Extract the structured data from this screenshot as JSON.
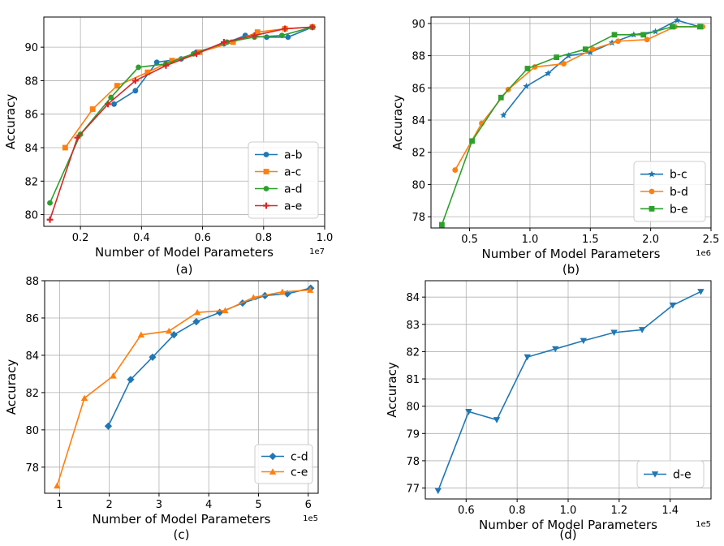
{
  "chart_data": [
    {
      "type": "line",
      "caption": "(a)",
      "xlabel": "Number of Model Parameters",
      "ylabel": "Accuracy",
      "x_offset_label": "1e7",
      "xlim": [
        0.08,
        1.0
      ],
      "ylim": [
        79.3,
        91.8
      ],
      "xticks": [
        0.2,
        0.4,
        0.6,
        0.8,
        1.0
      ],
      "xtick_labels": [
        "0.2",
        "0.4",
        "0.6",
        "0.8",
        "1.0"
      ],
      "yticks": [
        80,
        82,
        84,
        86,
        88,
        90
      ],
      "ytick_labels": [
        "80",
        "82",
        "84",
        "86",
        "88",
        "90"
      ],
      "grid": true,
      "legend_position": "lower-right",
      "series": [
        {
          "name": "a-b",
          "color": "#1f77b4",
          "marker": "circle",
          "x": [
            0.31,
            0.38,
            0.45,
            0.53,
            0.58,
            0.67,
            0.74,
            0.81,
            0.88,
            0.96
          ],
          "y": [
            86.6,
            87.4,
            89.1,
            89.3,
            89.7,
            90.2,
            90.7,
            90.6,
            90.6,
            91.2
          ]
        },
        {
          "name": "a-c",
          "color": "#ff7f0e",
          "marker": "square",
          "x": [
            0.15,
            0.24,
            0.32,
            0.42,
            0.5,
            0.59,
            0.7,
            0.78,
            0.87,
            0.96
          ],
          "y": [
            84.0,
            86.3,
            87.7,
            88.5,
            89.2,
            89.7,
            90.3,
            90.9,
            91.1,
            91.2
          ]
        },
        {
          "name": "a-d",
          "color": "#2ca02c",
          "marker": "circle",
          "x": [
            0.1,
            0.2,
            0.3,
            0.39,
            0.48,
            0.57,
            0.68,
            0.77,
            0.86,
            0.96
          ],
          "y": [
            80.7,
            84.8,
            87.0,
            88.8,
            89.0,
            89.6,
            90.3,
            90.6,
            90.7,
            91.2
          ]
        },
        {
          "name": "a-e",
          "color": "#d62728",
          "marker": "plus",
          "x": [
            0.1,
            0.19,
            0.29,
            0.38,
            0.48,
            0.58,
            0.67,
            0.77,
            0.87,
            0.96
          ],
          "y": [
            79.7,
            84.6,
            86.6,
            88.0,
            88.9,
            89.6,
            90.3,
            90.7,
            91.1,
            91.2
          ]
        }
      ]
    },
    {
      "type": "line",
      "caption": "(b)",
      "xlabel": "Number of Model Parameters",
      "ylabel": "Accuracy",
      "x_offset_label": "1e6",
      "xlim": [
        0.18,
        2.5
      ],
      "ylim": [
        77.3,
        90.4
      ],
      "xticks": [
        0.5,
        1.0,
        1.5,
        2.0,
        2.5
      ],
      "xtick_labels": [
        "0.5",
        "1.0",
        "1.5",
        "2.0",
        "2.5"
      ],
      "yticks": [
        78,
        80,
        82,
        84,
        86,
        88,
        90
      ],
      "ytick_labels": [
        "78",
        "80",
        "82",
        "84",
        "86",
        "88",
        "90"
      ],
      "grid": true,
      "legend_position": "lower-right",
      "series": [
        {
          "name": "b-c",
          "color": "#1f77b4",
          "marker": "star",
          "x": [
            0.78,
            0.97,
            1.15,
            1.32,
            1.5,
            1.68,
            1.86,
            2.04,
            2.22,
            2.4
          ],
          "y": [
            84.3,
            86.1,
            86.9,
            88.0,
            88.2,
            88.8,
            89.3,
            89.5,
            90.2,
            89.8
          ]
        },
        {
          "name": "b-d",
          "color": "#ff7f0e",
          "marker": "circle",
          "x": [
            0.38,
            0.6,
            0.82,
            1.04,
            1.28,
            1.52,
            1.73,
            1.97,
            2.2,
            2.43
          ],
          "y": [
            80.9,
            83.8,
            85.9,
            87.3,
            87.5,
            88.4,
            88.9,
            89.0,
            89.8,
            89.8
          ]
        },
        {
          "name": "b-e",
          "color": "#2ca02c",
          "marker": "square",
          "x": [
            0.27,
            0.52,
            0.76,
            0.98,
            1.22,
            1.46,
            1.7,
            1.94,
            2.18,
            2.41
          ],
          "y": [
            77.5,
            82.7,
            85.4,
            87.2,
            87.9,
            88.4,
            89.3,
            89.3,
            89.8,
            89.8
          ]
        }
      ]
    },
    {
      "type": "line",
      "caption": "(c)",
      "xlabel": "Number of Model Parameters",
      "ylabel": "Accuracy",
      "x_offset_label": "1e5",
      "xlim": [
        0.7,
        6.2
      ],
      "ylim": [
        76.6,
        88.0
      ],
      "xticks": [
        1,
        2,
        3,
        4,
        5,
        6
      ],
      "xtick_labels": [
        "1",
        "2",
        "3",
        "4",
        "5",
        "6"
      ],
      "yticks": [
        78,
        80,
        82,
        84,
        86,
        88
      ],
      "ytick_labels": [
        "78",
        "80",
        "82",
        "84",
        "86",
        "88"
      ],
      "grid": true,
      "legend_position": "lower-right",
      "series": [
        {
          "name": "c-d",
          "color": "#1f77b4",
          "marker": "diamond",
          "x": [
            1.98,
            2.43,
            2.87,
            3.3,
            3.75,
            4.22,
            4.68,
            5.13,
            5.58,
            6.05
          ],
          "y": [
            80.2,
            82.7,
            83.9,
            85.1,
            85.8,
            86.3,
            86.8,
            87.2,
            87.3,
            87.6
          ]
        },
        {
          "name": "c-e",
          "color": "#ff7f0e",
          "marker": "triangle-up",
          "x": [
            0.95,
            1.5,
            2.08,
            2.64,
            3.2,
            3.77,
            4.33,
            4.9,
            5.48,
            6.04
          ],
          "y": [
            77.0,
            81.7,
            82.9,
            85.1,
            85.3,
            86.3,
            86.4,
            87.1,
            87.4,
            87.5
          ]
        }
      ]
    },
    {
      "type": "line",
      "caption": "(d)",
      "xlabel": "Number of Model Parameters",
      "ylabel": "Accuracy",
      "x_offset_label": "1e5",
      "xlim": [
        0.44,
        1.56
      ],
      "ylim": [
        76.6,
        84.6
      ],
      "xticks": [
        0.6,
        0.8,
        1.0,
        1.2,
        1.4
      ],
      "xtick_labels": [
        "0.6",
        "0.8",
        "1.0",
        "1.2",
        "1.4"
      ],
      "yticks": [
        77,
        78,
        79,
        80,
        81,
        82,
        83,
        84
      ],
      "ytick_labels": [
        "77",
        "78",
        "79",
        "80",
        "81",
        "82",
        "83",
        "84"
      ],
      "grid": true,
      "legend_position": "lower-right",
      "series": [
        {
          "name": "d-e",
          "color": "#1f77b4",
          "marker": "triangle-down",
          "x": [
            0.49,
            0.61,
            0.72,
            0.84,
            0.95,
            1.06,
            1.18,
            1.29,
            1.41,
            1.52
          ],
          "y": [
            76.9,
            79.8,
            79.5,
            81.8,
            82.1,
            82.4,
            82.7,
            82.8,
            83.7,
            84.2
          ]
        }
      ]
    }
  ]
}
